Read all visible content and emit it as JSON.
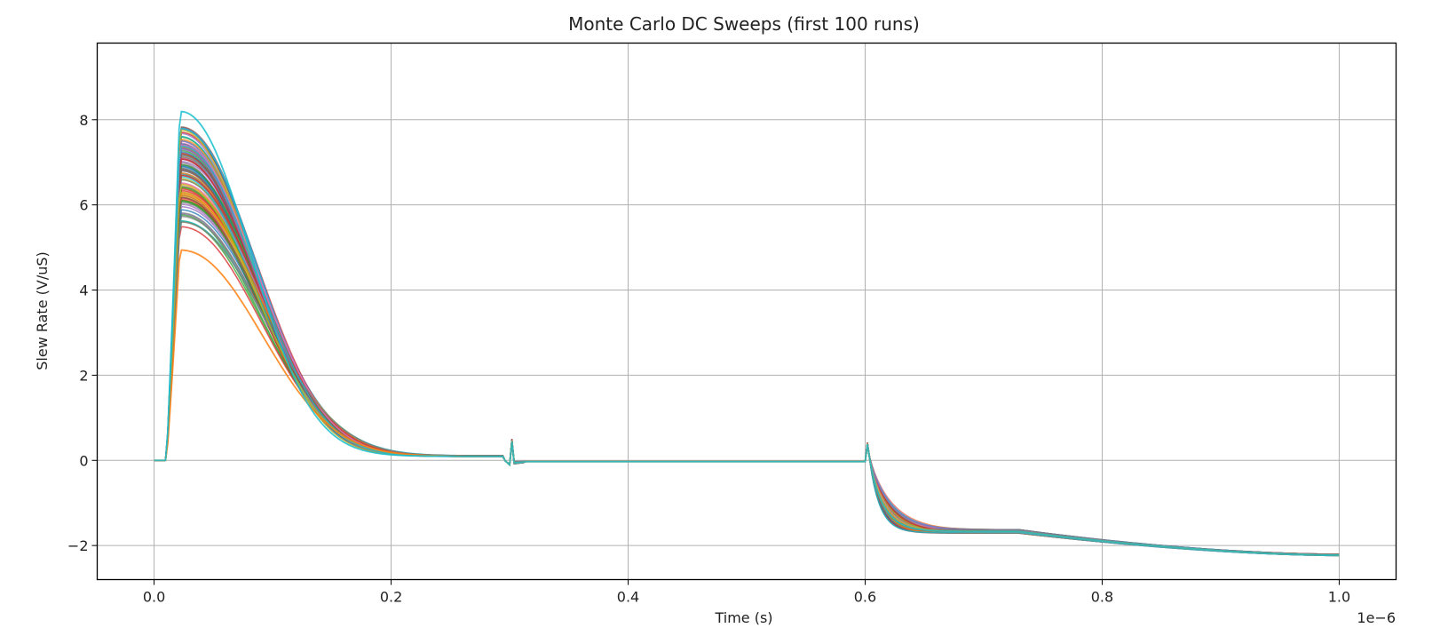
{
  "chart_data": {
    "type": "line",
    "title": "Monte Carlo DC Sweeps (first 100 runs)",
    "xlabel": "Time (s)",
    "ylabel": "Slew Rate (V/uS)",
    "x_offset_label": "1e−6",
    "x_ticks": [
      0.0,
      0.2,
      0.4,
      0.6,
      0.8,
      1.0
    ],
    "x_tick_labels": [
      "0.0",
      "0.2",
      "0.4",
      "0.6",
      "0.8",
      "1.0"
    ],
    "y_ticks": [
      -2,
      0,
      2,
      4,
      6,
      8
    ],
    "y_tick_labels": [
      "−2",
      "0",
      "2",
      "4",
      "6",
      "8"
    ],
    "xlim": [
      -0.048,
      1.048
    ],
    "ylim": [
      -2.8,
      9.8
    ],
    "grid": true,
    "legend": "none",
    "run_count_drawn": 100,
    "series_peak_range": [
      5.5,
      9.2
    ],
    "series_tail_range": [
      -2.25,
      -2.2
    ],
    "representative_run": {
      "x": [
        0.0,
        0.01,
        0.012,
        0.015,
        0.018,
        0.02,
        0.025,
        0.035,
        0.05,
        0.07,
        0.1,
        0.13,
        0.16,
        0.2,
        0.25,
        0.295,
        0.3,
        0.302,
        0.31,
        0.35,
        0.6,
        0.602,
        0.61,
        0.625,
        0.65,
        0.7,
        0.73,
        0.8,
        0.85,
        0.9,
        0.95,
        1.0
      ],
      "y": [
        0.0,
        0.0,
        1.5,
        5.0,
        7.0,
        7.4,
        7.5,
        7.3,
        6.9,
        5.9,
        3.8,
        1.9,
        0.9,
        0.4,
        0.2,
        0.12,
        -0.1,
        0.5,
        -0.05,
        -0.02,
        -0.02,
        0.4,
        -1.3,
        -1.65,
        -1.68,
        -1.62,
        -1.62,
        -1.9,
        -2.05,
        -2.15,
        -2.2,
        -2.22
      ]
    },
    "colors": [
      "#1f77b4",
      "#ff7f0e",
      "#2ca02c",
      "#d62728",
      "#9467bd",
      "#8c564b",
      "#e377c2",
      "#7f7f7f",
      "#bcbd22",
      "#17becf"
    ]
  }
}
